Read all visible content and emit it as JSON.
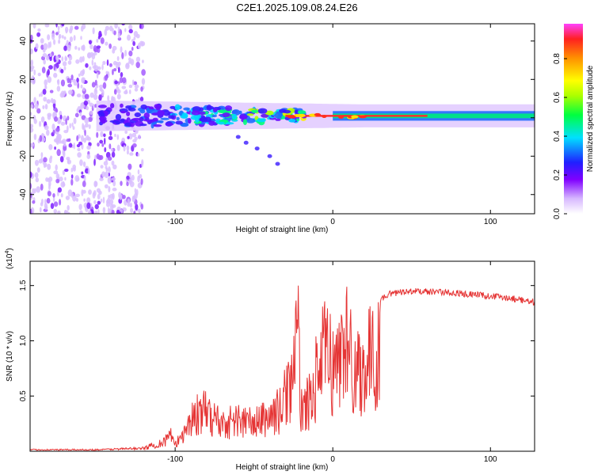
{
  "title": "C2E1.2025.109.08.24.E26",
  "chart_data": [
    {
      "type": "heatmap",
      "xlabel": "Height of straight line (km)",
      "ylabel": "Frequency (Hz)",
      "xlim": [
        -192,
        128
      ],
      "ylim": [
        -50,
        49
      ],
      "xticks": [
        -100,
        0,
        100
      ],
      "yticks": [
        -40,
        -20,
        0,
        20,
        40
      ],
      "colorbar": {
        "label": "Normalized spectral amplitude",
        "range": [
          0,
          0.98
        ],
        "ticks": [
          "0.0",
          "0.2",
          "0.4",
          "0.6",
          "0.8"
        ]
      },
      "features": {
        "noise_region_x": [
          -192,
          -120
        ],
        "band_center_freq": 1,
        "band_halfwidth_left": 6,
        "band_halfwidth_right": 2.5,
        "strong_line_x": [
          -30,
          128
        ]
      }
    },
    {
      "type": "line",
      "xlabel": "Height of straight line (km)",
      "ylabel": "SNR (10 * v/v)",
      "multiplier_label": "(x10",
      "multiplier_exp": "4",
      "xlim": [
        -192,
        128
      ],
      "ylim": [
        0,
        1.72
      ],
      "xticks": [
        -100,
        0,
        100
      ],
      "yticks": [
        "0.5",
        "1.0",
        "1.5"
      ],
      "color": "#e53535",
      "series_envelope": [
        [
          -192,
          0.02
        ],
        [
          -150,
          0.02
        ],
        [
          -120,
          0.04
        ],
        [
          -106,
          0.15
        ],
        [
          -104,
          0.28
        ],
        [
          -100,
          0.08
        ],
        [
          -90,
          0.45
        ],
        [
          -85,
          0.55
        ],
        [
          -80,
          0.55
        ],
        [
          -70,
          0.4
        ],
        [
          -60,
          0.45
        ],
        [
          -50,
          0.4
        ],
        [
          -40,
          0.5
        ],
        [
          -33,
          0.6
        ],
        [
          -30,
          0.8
        ],
        [
          -27,
          1.0
        ],
        [
          -25,
          1.2
        ],
        [
          -22,
          1.58
        ],
        [
          -20,
          0.6
        ],
        [
          -15,
          0.7
        ],
        [
          -10,
          1.1
        ],
        [
          -6,
          1.35
        ],
        [
          -3,
          1.48
        ],
        [
          0,
          1.15
        ],
        [
          4,
          1.3
        ],
        [
          8,
          1.7
        ],
        [
          12,
          1.25
        ],
        [
          18,
          1.18
        ],
        [
          25,
          1.35
        ],
        [
          35,
          1.45
        ],
        [
          50,
          1.48
        ],
        [
          70,
          1.47
        ],
        [
          90,
          1.45
        ],
        [
          110,
          1.42
        ],
        [
          128,
          1.38
        ]
      ]
    }
  ]
}
